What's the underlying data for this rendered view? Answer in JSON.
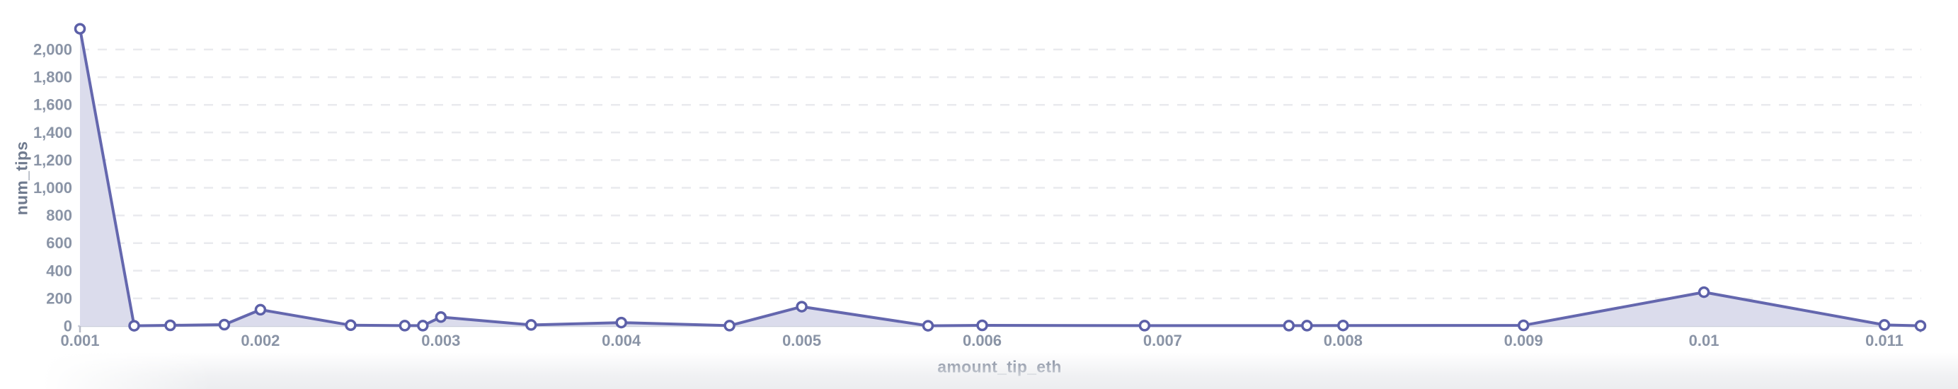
{
  "chart_data": {
    "type": "area",
    "title": "",
    "xlabel": "amount_tip_eth",
    "ylabel": "num_tips",
    "series_name": "num_tips",
    "x": [
      0.001,
      0.0013,
      0.0015,
      0.0018,
      0.002,
      0.0025,
      0.0028,
      0.0029,
      0.003,
      0.0035,
      0.004,
      0.0046,
      0.005,
      0.0057,
      0.006,
      0.0069,
      0.0077,
      0.0078,
      0.008,
      0.009,
      0.01,
      0.011,
      0.0112
    ],
    "values": [
      2150,
      2,
      5,
      10,
      118,
      6,
      3,
      3,
      65,
      8,
      25,
      3,
      140,
      2,
      5,
      3,
      3,
      3,
      4,
      5,
      245,
      8,
      2
    ],
    "xlim": [
      0.001,
      0.0112
    ],
    "ylim": [
      0,
      2150
    ],
    "x_ticks": {
      "values": [
        0.001,
        0.002,
        0.003,
        0.004,
        0.005,
        0.006,
        0.007,
        0.008,
        0.009,
        0.01,
        0.011
      ],
      "labels": [
        "0.001",
        "0.002",
        "0.003",
        "0.004",
        "0.005",
        "0.006",
        "0.007",
        "0.008",
        "0.009",
        "0.01",
        "0.011"
      ]
    },
    "y_ticks": {
      "values": [
        0,
        200,
        400,
        600,
        800,
        1000,
        1200,
        1400,
        1600,
        1800,
        2000
      ],
      "labels": [
        "0",
        "200",
        "400",
        "600",
        "800",
        "1,000",
        "1,200",
        "1,400",
        "1,600",
        "1,800",
        "2,000"
      ]
    },
    "grid": "horizontal-dashed",
    "legend": "none",
    "marker": "open-circle",
    "colors": {
      "line": "#6467ae",
      "marker_ring": "#5c60a8",
      "marker_fill": "#ffffff",
      "area_fill": "#dbdcec",
      "gridline": "#e9eaee",
      "baseline": "#ccd0dc",
      "tick_mark": "#b6bac6",
      "tick_label": "#8a94a6",
      "axis_title": "#6f7a8e",
      "page_bottom": "#eceef0"
    }
  }
}
